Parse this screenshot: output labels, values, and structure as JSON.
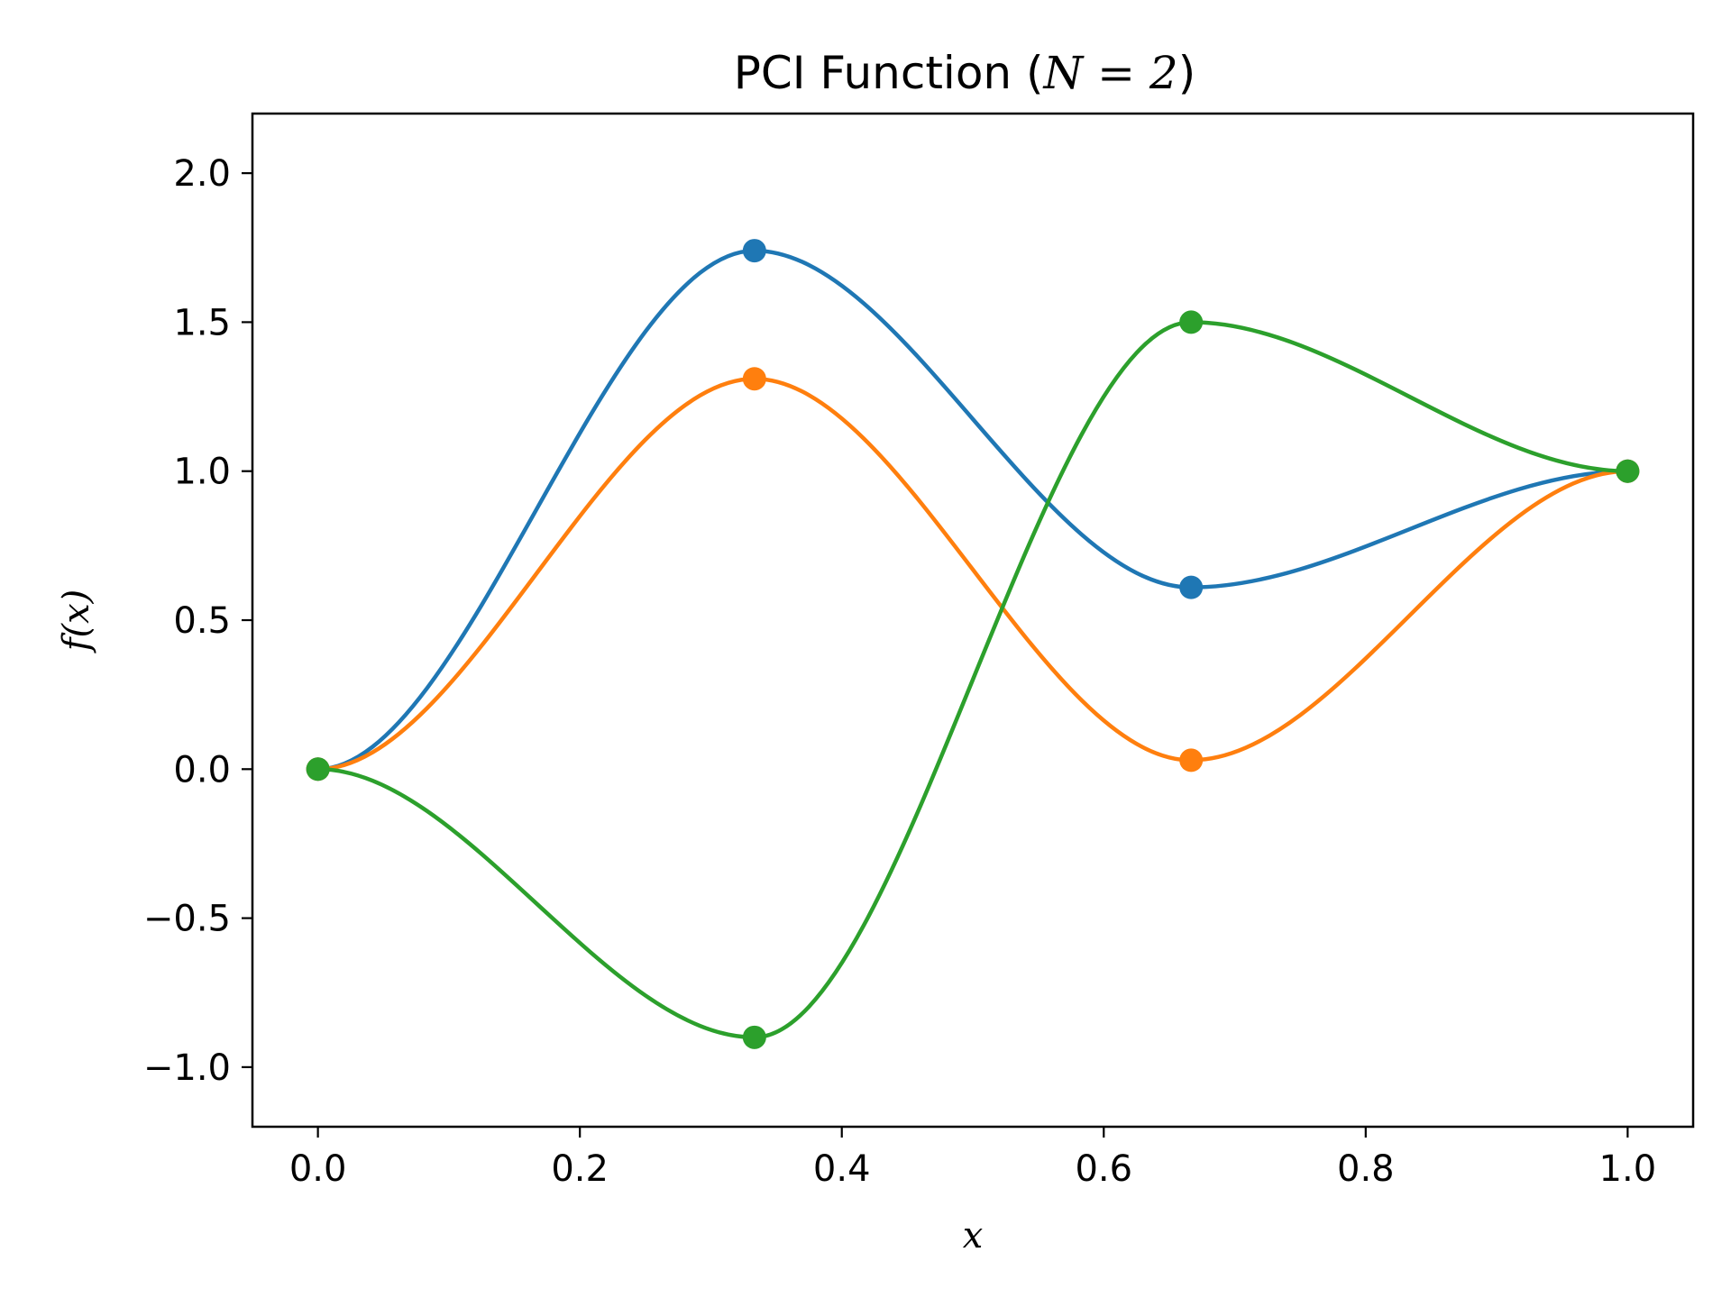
{
  "chart_data": {
    "type": "line",
    "title_prefix": "PCI Function (",
    "title_math": "N = 2",
    "title_suffix": ")",
    "xlabel": "x",
    "ylabel": "f(x)",
    "xlim": [
      -0.05,
      1.05
    ],
    "ylim": [
      -1.2,
      2.2
    ],
    "xticks": [
      0.0,
      0.2,
      0.4,
      0.6,
      0.8,
      1.0
    ],
    "xtick_labels": [
      "0.0",
      "0.2",
      "0.4",
      "0.6",
      "0.8",
      "1.0"
    ],
    "yticks": [
      -1.0,
      -0.5,
      0.0,
      0.5,
      1.0,
      1.5,
      2.0
    ],
    "ytick_labels": [
      "−1.0",
      "−0.5",
      "0.0",
      "0.5",
      "1.0",
      "1.5",
      "2.0"
    ],
    "grid": false,
    "legend": "none",
    "series": [
      {
        "color": "#1f77b4",
        "x": [
          0.0,
          0.3333,
          0.6667,
          1.0
        ],
        "y": [
          0.0,
          1.74,
          0.61,
          1.0
        ]
      },
      {
        "color": "#ff7f0e",
        "x": [
          0.0,
          0.3333,
          0.6667,
          1.0
        ],
        "y": [
          0.0,
          1.31,
          0.03,
          1.0
        ]
      },
      {
        "color": "#2ca02c",
        "x": [
          0.0,
          0.3333,
          0.6667,
          1.0
        ],
        "y": [
          0.0,
          -0.9,
          1.5,
          1.0
        ]
      }
    ]
  }
}
